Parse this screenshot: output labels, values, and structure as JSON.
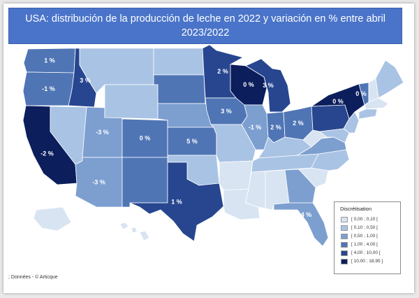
{
  "title": {
    "line1": "USA: distribución de la producción de leche en 2022 y variación en % entre abril",
    "line2": "2023/2022"
  },
  "colors": {
    "c0": "#d8e4f2",
    "c1": "#a9c3e4",
    "c2": "#7c9fd0",
    "c3": "#4f75b5",
    "c4": "#27468f",
    "c5": "#0c1e5c",
    "title_bg": "#4a74c9"
  },
  "legend": {
    "title": "Discrétisation",
    "classes": [
      {
        "label": "[ 0,00 ; 0,10 [",
        "color_key": "c0"
      },
      {
        "label": "[ 0,10 ; 0,50 [",
        "color_key": "c1"
      },
      {
        "label": "[ 0,50 ; 1,00 [",
        "color_key": "c2"
      },
      {
        "label": "[ 1,00 ; 4,00 [",
        "color_key": "c3"
      },
      {
        "label": "[ 4,00 ; 10,00 [",
        "color_key": "c4"
      },
      {
        "label": "[ 10,00 ; 18,95 ]",
        "color_key": "c5"
      }
    ]
  },
  "source": "; Données - © Articque",
  "states": [
    {
      "name": "Washington",
      "class": 3,
      "label": "1 %"
    },
    {
      "name": "Oregon",
      "class": 3,
      "label": "-1 %"
    },
    {
      "name": "Idaho",
      "class": 4,
      "label": "3 %"
    },
    {
      "name": "California",
      "class": 5,
      "label": "-2 %"
    },
    {
      "name": "Nevada",
      "class": 1,
      "label": ""
    },
    {
      "name": "Utah",
      "class": 2,
      "label": "-3 %"
    },
    {
      "name": "Arizona",
      "class": 2,
      "label": "-3 %"
    },
    {
      "name": "Montana",
      "class": 1,
      "label": ""
    },
    {
      "name": "Wyoming",
      "class": 1,
      "label": ""
    },
    {
      "name": "Colorado",
      "class": 3,
      "label": "0 %"
    },
    {
      "name": "New Mexico",
      "class": 3,
      "label": ""
    },
    {
      "name": "North Dakota",
      "class": 1,
      "label": ""
    },
    {
      "name": "South Dakota",
      "class": 3,
      "label": ""
    },
    {
      "name": "Nebraska",
      "class": 2,
      "label": ""
    },
    {
      "name": "Kansas",
      "class": 3,
      "label": "5 %"
    },
    {
      "name": "Oklahoma",
      "class": 1,
      "label": ""
    },
    {
      "name": "Texas",
      "class": 4,
      "label": "1 %"
    },
    {
      "name": "Minnesota",
      "class": 4,
      "label": "2 %"
    },
    {
      "name": "Iowa",
      "class": 3,
      "label": "3 %"
    },
    {
      "name": "Missouri",
      "class": 1,
      "label": ""
    },
    {
      "name": "Arkansas",
      "class": 0,
      "label": ""
    },
    {
      "name": "Louisiana",
      "class": 0,
      "label": ""
    },
    {
      "name": "Wisconsin",
      "class": 5,
      "label": "0 %"
    },
    {
      "name": "Illinois",
      "class": 2,
      "label": "-1 %"
    },
    {
      "name": "Michigan",
      "class": 4,
      "label": "3 %"
    },
    {
      "name": "Indiana",
      "class": 3,
      "label": "2 %"
    },
    {
      "name": "Ohio",
      "class": 3,
      "label": "2 %"
    },
    {
      "name": "Kentucky",
      "class": 1,
      "label": ""
    },
    {
      "name": "Tennessee",
      "class": 1,
      "label": ""
    },
    {
      "name": "Mississippi",
      "class": 0,
      "label": ""
    },
    {
      "name": "Alabama",
      "class": 0,
      "label": ""
    },
    {
      "name": "Georgia",
      "class": 2,
      "label": ""
    },
    {
      "name": "Florida",
      "class": 2,
      "label": "-4 %"
    },
    {
      "name": "South Carolina",
      "class": 0,
      "label": ""
    },
    {
      "name": "North Carolina",
      "class": 1,
      "label": ""
    },
    {
      "name": "Virginia",
      "class": 2,
      "label": ""
    },
    {
      "name": "West Virginia",
      "class": 0,
      "label": ""
    },
    {
      "name": "Pennsylvania",
      "class": 4,
      "label": ""
    },
    {
      "name": "New York",
      "class": 5,
      "label": "0 %"
    },
    {
      "name": "Vermont",
      "class": 3,
      "label": "0 %"
    },
    {
      "name": "New Hampshire",
      "class": 0,
      "label": ""
    },
    {
      "name": "Maine",
      "class": 1,
      "label": ""
    },
    {
      "name": "Massachusetts",
      "class": 0,
      "label": ""
    },
    {
      "name": "Connecticut",
      "class": 1,
      "label": ""
    },
    {
      "name": "New Jersey",
      "class": 1,
      "label": ""
    },
    {
      "name": "Maryland",
      "class": 1,
      "label": ""
    },
    {
      "name": "Alaska",
      "class": 0,
      "label": ""
    },
    {
      "name": "Hawaii",
      "class": 0,
      "label": ""
    }
  ]
}
